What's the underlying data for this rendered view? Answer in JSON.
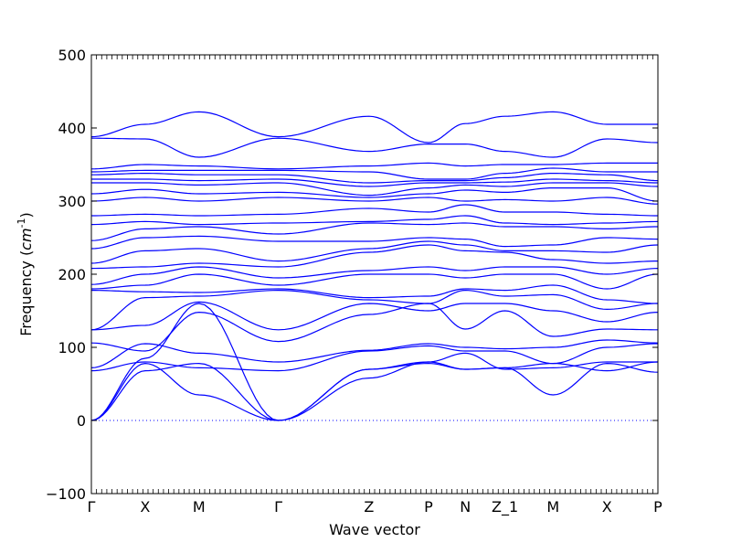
{
  "chart_data": {
    "type": "line",
    "title": "",
    "xlabel": "Wave vector",
    "ylabel": "Frequency ($cm^{-1}$)",
    "ylim": [
      -100,
      500
    ],
    "yticks": [
      -100,
      0,
      100,
      200,
      300,
      400,
      500
    ],
    "grid": false,
    "line_color": "#0000ff",
    "zero_line_color": "#0000ff",
    "x_range": [
      0,
      10
    ],
    "high_symmetry_points": [
      {
        "label": "Γ",
        "x": 0
      },
      {
        "label": "X",
        "x": 0.95
      },
      {
        "label": "M",
        "x": 1.9
      },
      {
        "label": "Γ",
        "x": 3.3
      },
      {
        "label": "Z",
        "x": 4.9
      },
      {
        "label": "P",
        "x": 5.95
      },
      {
        "label": "N",
        "x": 6.6
      },
      {
        "label": "Z_1",
        "x": 7.3
      },
      {
        "label": "M",
        "x": 8.15
      },
      {
        "label": "X",
        "x": 9.1
      },
      {
        "label": "P",
        "x": 10
      }
    ],
    "series": [
      {
        "x": [
          0,
          0.95,
          1.9,
          3.3,
          4.9,
          5.95,
          6.6,
          7.3,
          8.15,
          9.1,
          10
        ],
        "y": [
          0,
          68,
          78,
          0,
          70,
          80,
          70,
          72,
          78,
          68,
          80
        ]
      },
      {
        "x": [
          0,
          0.95,
          1.9,
          3.3,
          4.9,
          5.95,
          6.6,
          7.3,
          8.15,
          9.1,
          10
        ],
        "y": [
          0,
          78,
          35,
          0,
          70,
          78,
          70,
          72,
          35,
          78,
          66
        ]
      },
      {
        "x": [
          0,
          0.95,
          1.9,
          3.3,
          4.9,
          5.95,
          6.6,
          7.3,
          8.15,
          9.1,
          10
        ],
        "y": [
          0,
          85,
          160,
          0,
          58,
          80,
          92,
          70,
          72,
          80,
          80
        ]
      },
      {
        "x": [
          0,
          0.95,
          1.9,
          3.3,
          4.9,
          5.95,
          6.6,
          7.3,
          8.15,
          9.1,
          10
        ],
        "y": [
          68,
          80,
          72,
          68,
          95,
          102,
          95,
          95,
          78,
          100,
          105
        ]
      },
      {
        "x": [
          0,
          0.95,
          1.9,
          3.3,
          4.9,
          5.95,
          6.6,
          7.3,
          8.15,
          9.1,
          10
        ],
        "y": [
          72,
          105,
          92,
          80,
          96,
          105,
          100,
          98,
          100,
          110,
          106
        ]
      },
      {
        "x": [
          0,
          0.95,
          1.9,
          3.3,
          4.9,
          5.95,
          6.6,
          7.3,
          8.15,
          9.1,
          10
        ],
        "y": [
          106,
          95,
          148,
          108,
          145,
          160,
          125,
          150,
          115,
          125,
          124
        ]
      },
      {
        "x": [
          0,
          0.95,
          1.9,
          3.3,
          4.9,
          5.95,
          6.6,
          7.3,
          8.15,
          9.1,
          10
        ],
        "y": [
          124,
          130,
          162,
          124,
          160,
          150,
          160,
          160,
          150,
          135,
          148
        ]
      },
      {
        "x": [
          0,
          0.95,
          1.9,
          3.3,
          4.9,
          5.95,
          6.6,
          7.3,
          8.15,
          9.1,
          10
        ],
        "y": [
          124,
          168,
          170,
          178,
          165,
          160,
          178,
          170,
          172,
          152,
          160
        ]
      },
      {
        "x": [
          0,
          0.95,
          1.9,
          3.3,
          4.9,
          5.95,
          6.6,
          7.3,
          8.15,
          9.1,
          10
        ],
        "y": [
          178,
          176,
          175,
          180,
          168,
          170,
          180,
          178,
          185,
          165,
          160
        ]
      },
      {
        "x": [
          0,
          0.95,
          1.9,
          3.3,
          4.9,
          5.95,
          6.6,
          7.3,
          8.15,
          9.1,
          10
        ],
        "y": [
          180,
          185,
          200,
          185,
          200,
          200,
          195,
          200,
          200,
          180,
          200
        ]
      },
      {
        "x": [
          0,
          0.95,
          1.9,
          3.3,
          4.9,
          5.95,
          6.6,
          7.3,
          8.15,
          9.1,
          10
        ],
        "y": [
          186,
          200,
          210,
          195,
          205,
          210,
          205,
          210,
          210,
          200,
          208
        ]
      },
      {
        "x": [
          0,
          0.95,
          1.9,
          3.3,
          4.9,
          5.95,
          6.6,
          7.3,
          8.15,
          9.1,
          10
        ],
        "y": [
          208,
          210,
          215,
          210,
          230,
          240,
          232,
          230,
          220,
          215,
          218
        ]
      },
      {
        "x": [
          0,
          0.95,
          1.9,
          3.3,
          4.9,
          5.95,
          6.6,
          7.3,
          8.15,
          9.1,
          10
        ],
        "y": [
          215,
          232,
          235,
          218,
          235,
          245,
          240,
          232,
          232,
          230,
          240
        ]
      },
      {
        "x": [
          0,
          0.95,
          1.9,
          3.3,
          4.9,
          5.95,
          6.6,
          7.3,
          8.15,
          9.1,
          10
        ],
        "y": [
          235,
          250,
          252,
          245,
          245,
          250,
          248,
          238,
          240,
          250,
          248
        ]
      },
      {
        "x": [
          0,
          0.95,
          1.9,
          3.3,
          4.9,
          5.95,
          6.6,
          7.3,
          8.15,
          9.1,
          10
        ],
        "y": [
          246,
          262,
          265,
          255,
          270,
          268,
          270,
          265,
          265,
          262,
          265
        ]
      },
      {
        "x": [
          0,
          0.95,
          1.9,
          3.3,
          4.9,
          5.95,
          6.6,
          7.3,
          8.15,
          9.1,
          10
        ],
        "y": [
          268,
          272,
          268,
          270,
          272,
          275,
          280,
          270,
          268,
          270,
          272
        ]
      },
      {
        "x": [
          0,
          0.95,
          1.9,
          3.3,
          4.9,
          5.95,
          6.6,
          7.3,
          8.15,
          9.1,
          10
        ],
        "y": [
          280,
          282,
          280,
          282,
          290,
          285,
          295,
          285,
          285,
          282,
          280
        ]
      },
      {
        "x": [
          0,
          0.95,
          1.9,
          3.3,
          4.9,
          5.95,
          6.6,
          7.3,
          8.15,
          9.1,
          10
        ],
        "y": [
          300,
          305,
          300,
          305,
          300,
          305,
          300,
          302,
          300,
          305,
          296
        ]
      },
      {
        "x": [
          0,
          0.95,
          1.9,
          3.3,
          4.9,
          5.95,
          6.6,
          7.3,
          8.15,
          9.1,
          10
        ],
        "y": [
          310,
          316,
          310,
          312,
          305,
          310,
          315,
          312,
          318,
          318,
          300
        ]
      },
      {
        "x": [
          0,
          0.95,
          1.9,
          3.3,
          4.9,
          5.95,
          6.6,
          7.3,
          8.15,
          9.1,
          10
        ],
        "y": [
          325,
          325,
          322,
          325,
          308,
          318,
          322,
          320,
          325,
          325,
          320
        ]
      },
      {
        "x": [
          0,
          0.95,
          1.9,
          3.3,
          4.9,
          5.95,
          6.6,
          7.3,
          8.15,
          9.1,
          10
        ],
        "y": [
          330,
          330,
          328,
          330,
          320,
          325,
          325,
          326,
          330,
          328,
          325
        ]
      },
      {
        "x": [
          0,
          0.95,
          1.9,
          3.3,
          4.9,
          5.95,
          6.6,
          7.3,
          8.15,
          9.1,
          10
        ],
        "y": [
          336,
          338,
          336,
          336,
          325,
          328,
          328,
          332,
          338,
          336,
          328
        ]
      },
      {
        "x": [
          0,
          0.95,
          1.9,
          3.3,
          4.9,
          5.95,
          6.6,
          7.3,
          8.15,
          9.1,
          10
        ],
        "y": [
          340,
          342,
          342,
          342,
          340,
          330,
          330,
          338,
          345,
          340,
          340
        ]
      },
      {
        "x": [
          0,
          0.95,
          1.9,
          3.3,
          4.9,
          5.95,
          6.6,
          7.3,
          8.15,
          9.1,
          10
        ],
        "y": [
          344,
          350,
          348,
          344,
          348,
          352,
          348,
          350,
          350,
          352,
          352
        ]
      },
      {
        "x": [
          0,
          0.95,
          1.9,
          3.3,
          4.9,
          5.95,
          6.6,
          7.3,
          8.15,
          9.1,
          10
        ],
        "y": [
          386,
          385,
          360,
          386,
          368,
          378,
          378,
          368,
          360,
          385,
          380
        ]
      },
      {
        "x": [
          0,
          0.95,
          1.9,
          3.3,
          4.9,
          5.95,
          6.6,
          7.3,
          8.15,
          9.1,
          10
        ],
        "y": [
          388,
          405,
          422,
          388,
          416,
          380,
          406,
          416,
          422,
          405,
          405
        ]
      }
    ]
  }
}
